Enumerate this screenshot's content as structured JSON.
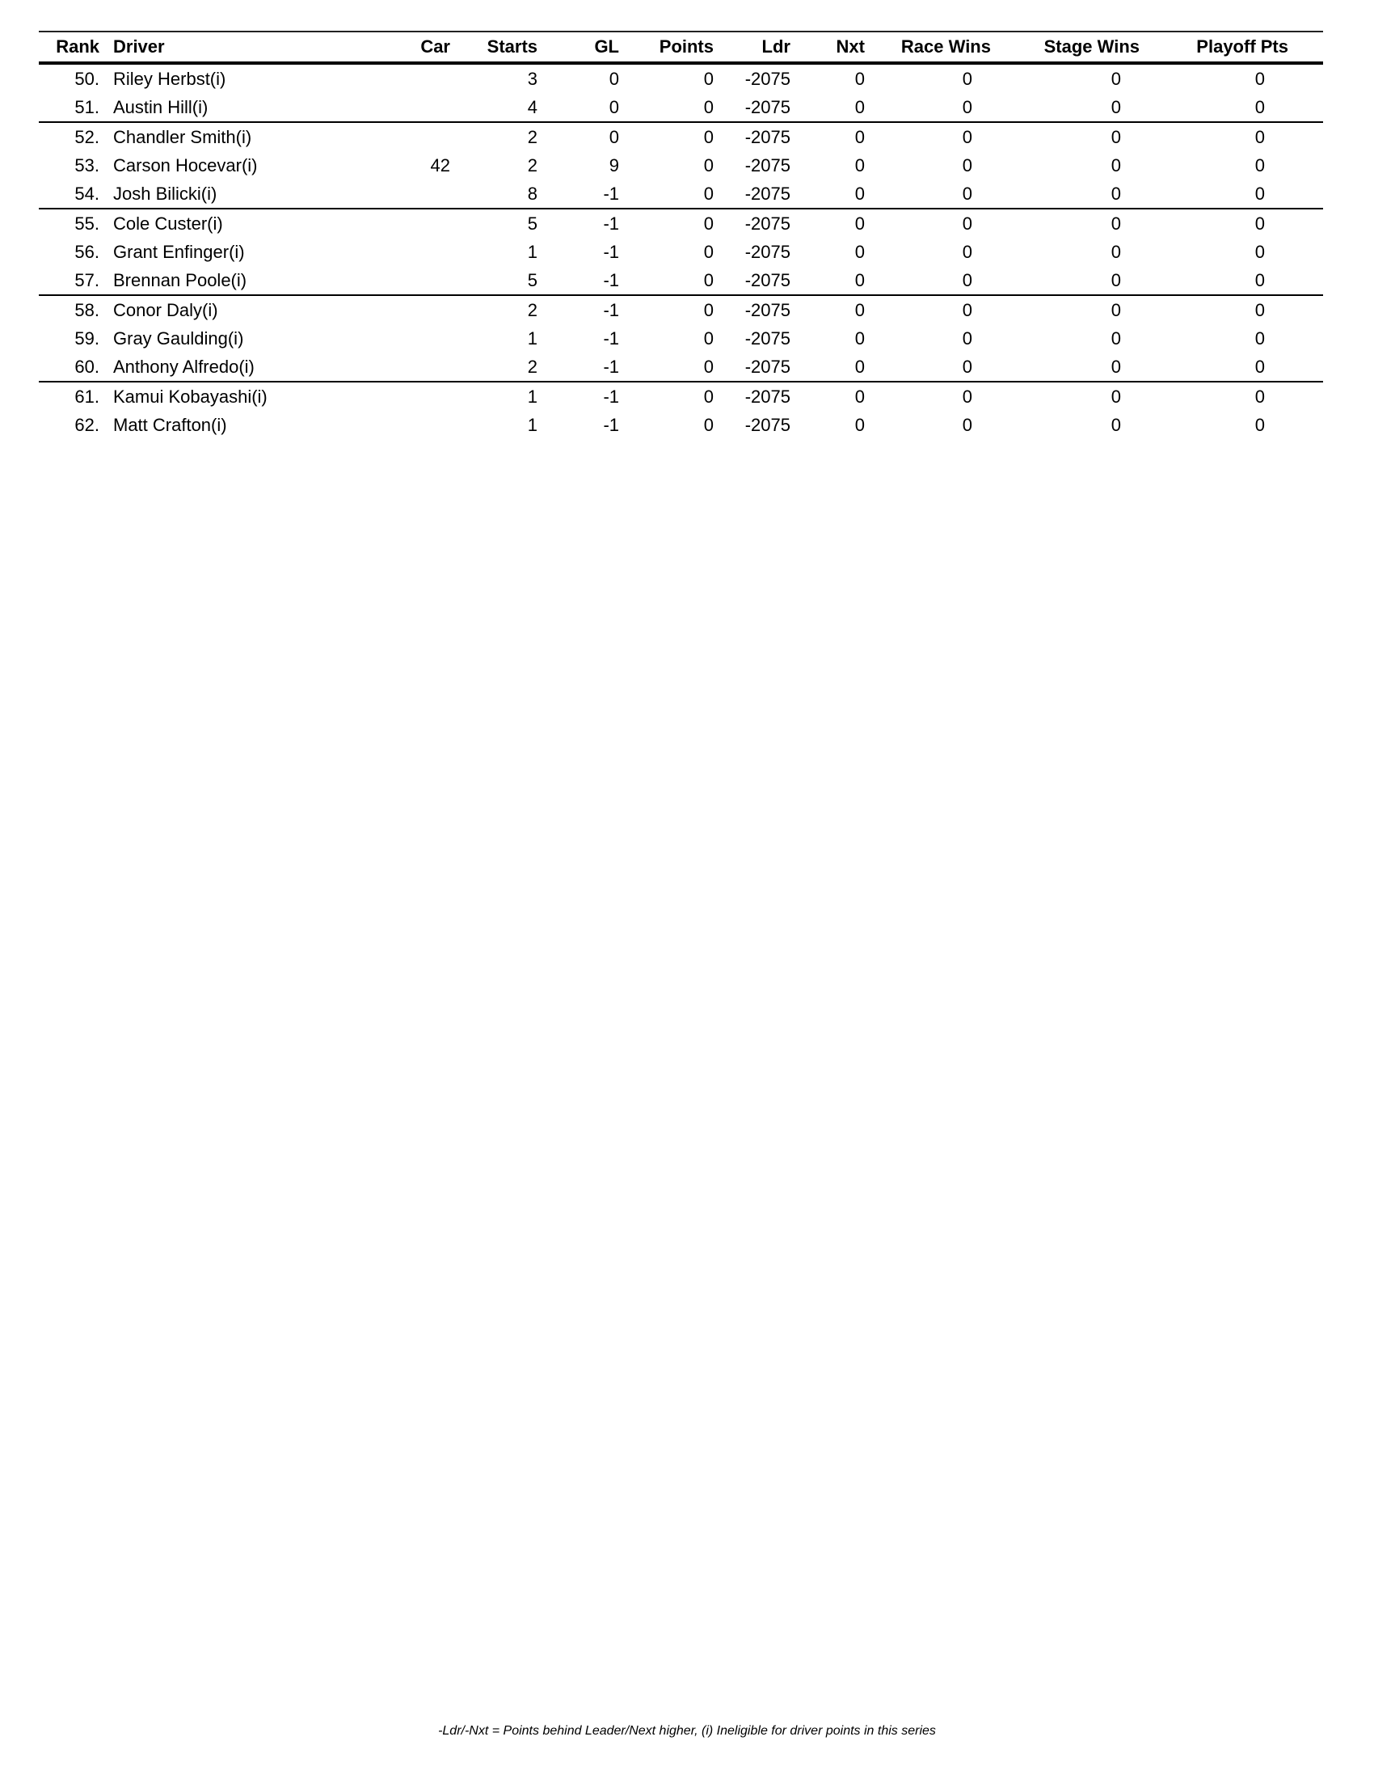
{
  "standings_table": {
    "columns": [
      {
        "key": "rank",
        "label": "Rank"
      },
      {
        "key": "driver",
        "label": "Driver"
      },
      {
        "key": "car",
        "label": "Car"
      },
      {
        "key": "starts",
        "label": "Starts"
      },
      {
        "key": "gl",
        "label": "GL"
      },
      {
        "key": "points",
        "label": "Points"
      },
      {
        "key": "ldr",
        "label": "Ldr"
      },
      {
        "key": "nxt",
        "label": "Nxt"
      },
      {
        "key": "race_wins",
        "label": "Race Wins"
      },
      {
        "key": "stage_wins",
        "label": "Stage Wins"
      },
      {
        "key": "playoff_pts",
        "label": "Playoff Pts"
      }
    ],
    "row_groups": [
      [
        {
          "rank": "50.",
          "driver": "Riley Herbst(i)",
          "car": "",
          "starts": "3",
          "gl": "0",
          "points": "0",
          "ldr": "-2075",
          "nxt": "0",
          "race_wins": "0",
          "stage_wins": "0",
          "playoff_pts": "0"
        },
        {
          "rank": "51.",
          "driver": "Austin Hill(i)",
          "car": "",
          "starts": "4",
          "gl": "0",
          "points": "0",
          "ldr": "-2075",
          "nxt": "0",
          "race_wins": "0",
          "stage_wins": "0",
          "playoff_pts": "0"
        }
      ],
      [
        {
          "rank": "52.",
          "driver": "Chandler Smith(i)",
          "car": "",
          "starts": "2",
          "gl": "0",
          "points": "0",
          "ldr": "-2075",
          "nxt": "0",
          "race_wins": "0",
          "stage_wins": "0",
          "playoff_pts": "0"
        },
        {
          "rank": "53.",
          "driver": "Carson Hocevar(i)",
          "car": "42",
          "starts": "2",
          "gl": "9",
          "points": "0",
          "ldr": "-2075",
          "nxt": "0",
          "race_wins": "0",
          "stage_wins": "0",
          "playoff_pts": "0"
        },
        {
          "rank": "54.",
          "driver": "Josh Bilicki(i)",
          "car": "",
          "starts": "8",
          "gl": "-1",
          "points": "0",
          "ldr": "-2075",
          "nxt": "0",
          "race_wins": "0",
          "stage_wins": "0",
          "playoff_pts": "0"
        }
      ],
      [
        {
          "rank": "55.",
          "driver": "Cole Custer(i)",
          "car": "",
          "starts": "5",
          "gl": "-1",
          "points": "0",
          "ldr": "-2075",
          "nxt": "0",
          "race_wins": "0",
          "stage_wins": "0",
          "playoff_pts": "0"
        },
        {
          "rank": "56.",
          "driver": "Grant Enfinger(i)",
          "car": "",
          "starts": "1",
          "gl": "-1",
          "points": "0",
          "ldr": "-2075",
          "nxt": "0",
          "race_wins": "0",
          "stage_wins": "0",
          "playoff_pts": "0"
        },
        {
          "rank": "57.",
          "driver": "Brennan Poole(i)",
          "car": "",
          "starts": "5",
          "gl": "-1",
          "points": "0",
          "ldr": "-2075",
          "nxt": "0",
          "race_wins": "0",
          "stage_wins": "0",
          "playoff_pts": "0"
        }
      ],
      [
        {
          "rank": "58.",
          "driver": "Conor Daly(i)",
          "car": "",
          "starts": "2",
          "gl": "-1",
          "points": "0",
          "ldr": "-2075",
          "nxt": "0",
          "race_wins": "0",
          "stage_wins": "0",
          "playoff_pts": "0"
        },
        {
          "rank": "59.",
          "driver": "Gray Gaulding(i)",
          "car": "",
          "starts": "1",
          "gl": "-1",
          "points": "0",
          "ldr": "-2075",
          "nxt": "0",
          "race_wins": "0",
          "stage_wins": "0",
          "playoff_pts": "0"
        },
        {
          "rank": "60.",
          "driver": "Anthony Alfredo(i)",
          "car": "",
          "starts": "2",
          "gl": "-1",
          "points": "0",
          "ldr": "-2075",
          "nxt": "0",
          "race_wins": "0",
          "stage_wins": "0",
          "playoff_pts": "0"
        }
      ],
      [
        {
          "rank": "61.",
          "driver": "Kamui Kobayashi(i)",
          "car": "",
          "starts": "1",
          "gl": "-1",
          "points": "0",
          "ldr": "-2075",
          "nxt": "0",
          "race_wins": "0",
          "stage_wins": "0",
          "playoff_pts": "0"
        },
        {
          "rank": "62.",
          "driver": "Matt Crafton(i)",
          "car": "",
          "starts": "1",
          "gl": "-1",
          "points": "0",
          "ldr": "-2075",
          "nxt": "0",
          "race_wins": "0",
          "stage_wins": "0",
          "playoff_pts": "0"
        }
      ]
    ]
  },
  "footnote": {
    "text": "-Ldr/-Nxt = Points behind Leader/Next higher, (i) Ineligible for driver points in this series"
  }
}
